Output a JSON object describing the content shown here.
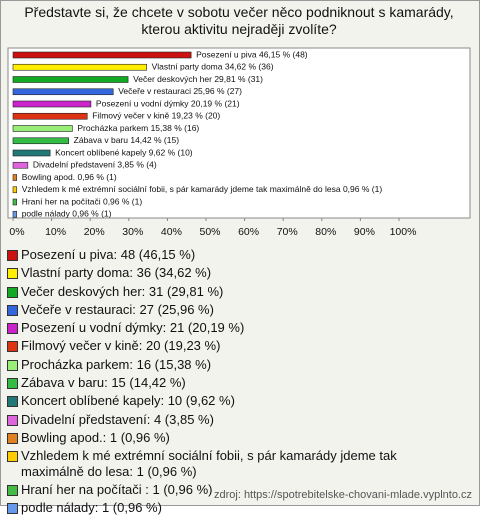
{
  "chart_data": {
    "type": "barh",
    "title": "Představte si, že chcete v sobotu večer něco podniknout s kamarády, kterou aktivitu nejraději zvolíte?",
    "categories": [
      "Posezení u piva",
      "Vlastní party doma",
      "Večer deskových her",
      "Večeře v restauraci",
      "Posezení u vodní dýmky",
      "Filmový večer v kině",
      "Procházka parkem",
      "Zábava v baru",
      "Koncert oblíbené kapely",
      "Divadelní představení",
      "Bowling apod.",
      "Vzhledem k mé extrémní sociální fobii, s pár kamarády jdeme tak maximálně do lesa",
      "Hraní her na počítači",
      "podle nálady"
    ],
    "values": [
      46.15,
      34.62,
      29.81,
      25.96,
      20.19,
      19.23,
      15.38,
      14.42,
      9.62,
      3.85,
      0.96,
      0.96,
      0.96,
      0.96
    ],
    "value_labels": [
      "Posezení u piva 46,15 % (48)",
      "Vlastní party doma 34,62 % (36)",
      "Večer deskových her 29,81 % (31)",
      "Večeře v restauraci 25,96 % (27)",
      "Posezení u vodní dýmky 20,19 % (21)",
      "Filmový večer v kině 19,23 % (20)",
      "Procházka parkem 15,38 % (16)",
      "Zábava v baru 14,42 % (15)",
      "Koncert oblíbené kapely 9,62 % (10)",
      "Divadelní představení 3,85 % (4)",
      "Bowling apod. 0,96 % (1)",
      "Vzhledem k mé extrémní sociální fobii, s pár kamarády jdeme tak maximálně do lesa 0,96 % (1)",
      "Hraní her na počítači  0,96 % (1)",
      "podle nálady 0,96 % (1)"
    ],
    "legend_labels": [
      "Posezení u piva: 48 (46,15 %)",
      "Vlastní party doma: 36 (34,62 %)",
      "Večer deskových her: 31 (29,81 %)",
      "Večeře v restauraci: 27 (25,96 %)",
      "Posezení u vodní dýmky: 21 (20,19 %)",
      "Filmový večer v kině: 20 (19,23 %)",
      "Procházka parkem: 16 (15,38 %)",
      "Zábava v baru: 15 (14,42 %)",
      "Koncert oblíbené kapely: 10 (9,62 %)",
      "Divadelní představení: 4 (3,85 %)",
      "Bowling apod.: 1 (0,96 %)",
      "Vzhledem k mé extrémní sociální fobii, s pár kamarády jdeme tak maximálně do lesa: 1 (0,96 %)",
      "Hraní her na počítači : 1 (0,96 %)",
      "podle nálady: 1 (0,96 %)"
    ],
    "colors": [
      "#cc1111",
      "#ffee00",
      "#11aa22",
      "#3366dd",
      "#cc22cc",
      "#dd3311",
      "#99ee77",
      "#33bb44",
      "#227777",
      "#dd66dd",
      "#e08020",
      "#ffcc00",
      "#44bb44",
      "#6699ee"
    ],
    "xlim": [
      0,
      100
    ],
    "xticks": [
      {
        "value": 0,
        "label": "0%"
      },
      {
        "value": 10,
        "label": "10%"
      },
      {
        "value": 20,
        "label": "20%"
      },
      {
        "value": 30,
        "label": "30%"
      },
      {
        "value": 40,
        "label": "40%"
      },
      {
        "value": 50,
        "label": "50%"
      },
      {
        "value": 60,
        "label": "60%"
      },
      {
        "value": 70,
        "label": "70%"
      },
      {
        "value": 80,
        "label": "80%"
      },
      {
        "value": 90,
        "label": "90%"
      },
      {
        "value": 100,
        "label": "100%"
      }
    ],
    "source": "zdroj: https://spotrebitelske-chovani-mlade.vyplnto.cz"
  }
}
